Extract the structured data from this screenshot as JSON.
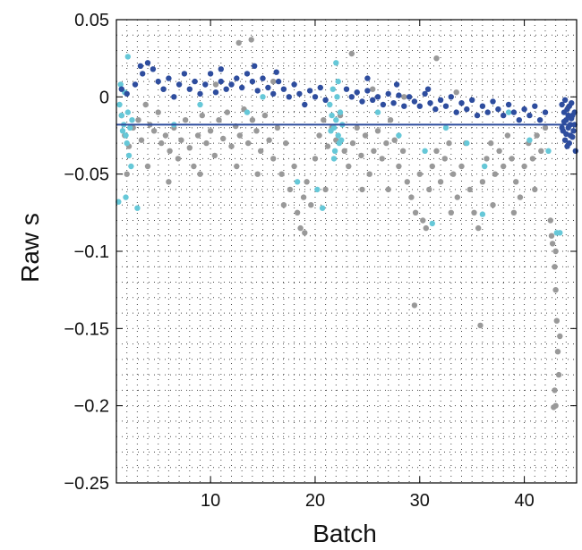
{
  "chart_data": {
    "type": "scatter",
    "title": "",
    "xlabel": "Batch",
    "ylabel": "Raw  s",
    "xlim": [
      1,
      45
    ],
    "ylim": [
      -0.25,
      0.05
    ],
    "xticks": [
      10,
      20,
      30,
      40
    ],
    "yticks": [
      0.05,
      0,
      -0.05,
      -0.1,
      -0.15,
      -0.2,
      -0.25
    ],
    "ytick_labels": [
      "0.05",
      "0",
      "−0.05",
      "−0.1",
      "−0.15",
      "−0.2",
      "−0.25"
    ],
    "grid": "dotted",
    "colors": {
      "gray": "#999999",
      "cyan": "#66c8d8",
      "navy": "#2e4d9e"
    },
    "reference_line": {
      "y": -0.018,
      "x_range": [
        1,
        45
      ],
      "color": "#2e4d9e"
    },
    "series": [
      {
        "color": "#999999",
        "points": [
          [
            1.5,
            -0.012
          ],
          [
            1.8,
            -0.025
          ],
          [
            2.2,
            -0.032
          ],
          [
            2.6,
            -0.02
          ],
          [
            3.1,
            -0.015
          ],
          [
            3.4,
            -0.028
          ],
          [
            3.8,
            -0.005
          ],
          [
            4.2,
            -0.018
          ],
          [
            4.6,
            -0.022
          ],
          [
            5.0,
            -0.01
          ],
          [
            5.3,
            -0.03
          ],
          [
            5.7,
            -0.025
          ],
          [
            6.1,
            -0.035
          ],
          [
            6.5,
            -0.02
          ],
          [
            6.9,
            -0.04
          ],
          [
            7.2,
            -0.028
          ],
          [
            7.6,
            -0.015
          ],
          [
            8.0,
            -0.033
          ],
          [
            8.4,
            -0.045
          ],
          [
            8.8,
            -0.025
          ],
          [
            9.2,
            -0.012
          ],
          [
            9.6,
            -0.03
          ],
          [
            10.0,
            -0.022
          ],
          [
            10.4,
            -0.038
          ],
          [
            10.8,
            -0.015
          ],
          [
            11.2,
            -0.027
          ],
          [
            11.6,
            -0.01
          ],
          [
            12.0,
            -0.032
          ],
          [
            12.4,
            -0.019
          ],
          [
            12.8,
            -0.025
          ],
          [
            13.2,
            -0.008
          ],
          [
            13.6,
            -0.03
          ],
          [
            14.0,
            -0.015
          ],
          [
            14.4,
            -0.022
          ],
          [
            14.8,
            -0.035
          ],
          [
            15.2,
            -0.012
          ],
          [
            15.6,
            -0.028
          ],
          [
            16.0,
            -0.04
          ],
          [
            16.4,
            -0.02
          ],
          [
            16.8,
            -0.05
          ],
          [
            17.2,
            -0.03
          ],
          [
            17.6,
            -0.06
          ],
          [
            18.0,
            -0.045
          ],
          [
            18.3,
            -0.075
          ],
          [
            18.6,
            -0.085
          ],
          [
            18.9,
            -0.065
          ],
          [
            19.2,
            -0.055
          ],
          [
            19.6,
            -0.07
          ],
          [
            20.0,
            -0.04
          ],
          [
            20.4,
            -0.025
          ],
          [
            20.8,
            -0.015
          ],
          [
            21.2,
            -0.032
          ],
          [
            21.6,
            -0.02
          ],
          [
            22.0,
            -0.028
          ],
          [
            22.4,
            -0.012
          ],
          [
            22.8,
            -0.035
          ],
          [
            23.2,
            -0.045
          ],
          [
            23.6,
            -0.03
          ],
          [
            24.0,
            -0.02
          ],
          [
            24.4,
            -0.038
          ],
          [
            24.8,
            -0.025
          ],
          [
            25.2,
            -0.05
          ],
          [
            25.6,
            -0.035
          ],
          [
            26.0,
            -0.022
          ],
          [
            26.4,
            -0.04
          ],
          [
            26.8,
            -0.03
          ],
          [
            27.2,
            -0.015
          ],
          [
            27.6,
            -0.028
          ],
          [
            28.0,
            -0.045
          ],
          [
            28.4,
            -0.035
          ],
          [
            28.8,
            -0.055
          ],
          [
            29.2,
            -0.065
          ],
          [
            29.6,
            -0.075
          ],
          [
            30.0,
            -0.05
          ],
          [
            30.3,
            -0.08
          ],
          [
            30.6,
            -0.085
          ],
          [
            30.9,
            -0.06
          ],
          [
            31.2,
            -0.045
          ],
          [
            31.6,
            -0.035
          ],
          [
            32.0,
            -0.055
          ],
          [
            32.4,
            -0.04
          ],
          [
            32.8,
            -0.03
          ],
          [
            33.2,
            -0.05
          ],
          [
            33.6,
            -0.065
          ],
          [
            34.0,
            -0.045
          ],
          [
            34.4,
            -0.03
          ],
          [
            34.8,
            -0.06
          ],
          [
            35.2,
            -0.075
          ],
          [
            35.6,
            -0.085
          ],
          [
            36.0,
            -0.055
          ],
          [
            36.4,
            -0.04
          ],
          [
            36.8,
            -0.03
          ],
          [
            37.2,
            -0.05
          ],
          [
            37.6,
            -0.035
          ],
          [
            38.0,
            -0.045
          ],
          [
            38.4,
            -0.025
          ],
          [
            38.8,
            -0.04
          ],
          [
            39.2,
            -0.055
          ],
          [
            39.6,
            -0.065
          ],
          [
            40.0,
            -0.045
          ],
          [
            40.4,
            -0.03
          ],
          [
            40.8,
            -0.04
          ],
          [
            41.2,
            -0.025
          ],
          [
            41.6,
            -0.035
          ],
          [
            42.0,
            -0.02
          ],
          [
            42.5,
            -0.08
          ],
          [
            42.7,
            -0.095
          ],
          [
            42.9,
            -0.11
          ],
          [
            43.0,
            -0.125
          ],
          [
            43.1,
            -0.145
          ],
          [
            43.2,
            -0.165
          ],
          [
            43.3,
            -0.18
          ],
          [
            42.9,
            -0.19
          ],
          [
            43.0,
            -0.2
          ],
          [
            42.8,
            -0.201
          ],
          [
            43.4,
            -0.155
          ],
          [
            43.0,
            -0.1
          ],
          [
            42.6,
            -0.09
          ],
          [
            2.0,
            -0.05
          ],
          [
            4.0,
            -0.045
          ],
          [
            6.0,
            -0.055
          ],
          [
            9.0,
            -0.05
          ],
          [
            12.5,
            -0.045
          ],
          [
            14.5,
            -0.05
          ],
          [
            17.0,
            -0.07
          ],
          [
            19.0,
            -0.088
          ],
          [
            21.0,
            -0.06
          ],
          [
            24.5,
            -0.06
          ],
          [
            27.0,
            -0.06
          ],
          [
            29.5,
            -0.135
          ],
          [
            33.0,
            -0.075
          ],
          [
            35.8,
            -0.148
          ],
          [
            37.0,
            -0.07
          ],
          [
            39.0,
            -0.075
          ],
          [
            41.0,
            -0.06
          ],
          [
            12.7,
            0.035
          ],
          [
            13.9,
            0.037
          ],
          [
            23.5,
            0.028
          ],
          [
            31.6,
            0.025
          ],
          [
            16.0,
            0.01
          ],
          [
            5.5,
            0.005
          ],
          [
            10.5,
            0.008
          ],
          [
            25.5,
            0.005
          ],
          [
            28.5,
            0.0
          ],
          [
            33.5,
            0.003
          ]
        ]
      },
      {
        "color": "#66c8d8",
        "points": [
          [
            1.3,
            -0.005
          ],
          [
            1.5,
            -0.012
          ],
          [
            1.7,
            -0.018
          ],
          [
            1.9,
            -0.025
          ],
          [
            2.1,
            -0.01
          ],
          [
            2.3,
            -0.02
          ],
          [
            2.5,
            -0.015
          ],
          [
            1.4,
            0.008
          ],
          [
            1.8,
            0.003
          ],
          [
            2.0,
            -0.03
          ],
          [
            2.2,
            -0.038
          ],
          [
            1.6,
            -0.022
          ],
          [
            1.2,
            -0.068
          ],
          [
            2.1,
            0.026
          ],
          [
            2.4,
            -0.045
          ],
          [
            3.0,
            -0.072
          ],
          [
            1.9,
            -0.065
          ],
          [
            21.4,
            -0.005
          ],
          [
            21.6,
            -0.012
          ],
          [
            21.8,
            -0.02
          ],
          [
            22.0,
            -0.015
          ],
          [
            22.2,
            -0.025
          ],
          [
            22.4,
            -0.01
          ],
          [
            22.6,
            -0.018
          ],
          [
            21.7,
            0.005
          ],
          [
            22.1,
            0.0
          ],
          [
            22.3,
            -0.03
          ],
          [
            21.9,
            -0.035
          ],
          [
            22.5,
            -0.028
          ],
          [
            21.5,
            -0.022
          ],
          [
            22.0,
            0.022
          ],
          [
            22.2,
            0.01
          ],
          [
            21.8,
            -0.04
          ],
          [
            20.2,
            -0.06
          ],
          [
            20.7,
            -0.072
          ],
          [
            18.3,
            -0.055
          ],
          [
            9.0,
            -0.005
          ],
          [
            13.5,
            -0.01
          ],
          [
            15.0,
            0.0
          ],
          [
            26.0,
            -0.01
          ],
          [
            28.0,
            -0.025
          ],
          [
            30.5,
            -0.035
          ],
          [
            32.5,
            -0.02
          ],
          [
            34.5,
            -0.03
          ],
          [
            36.2,
            -0.045
          ],
          [
            38.5,
            -0.01
          ],
          [
            40.5,
            -0.028
          ],
          [
            42.3,
            -0.035
          ],
          [
            43.1,
            -0.088
          ],
          [
            43.4,
            -0.088
          ],
          [
            31.2,
            -0.082
          ],
          [
            36.0,
            -0.076
          ],
          [
            6.5,
            -0.018
          ]
        ]
      },
      {
        "color": "#2e4d9e",
        "points": [
          [
            1.5,
            0.005
          ],
          [
            2.0,
            0.002
          ],
          [
            2.8,
            0.008
          ],
          [
            3.5,
            0.015
          ],
          [
            4.0,
            0.022
          ],
          [
            4.5,
            0.018
          ],
          [
            5.0,
            0.01
          ],
          [
            5.5,
            0.005
          ],
          [
            6.0,
            0.012
          ],
          [
            6.5,
            0.0
          ],
          [
            7.0,
            0.008
          ],
          [
            7.5,
            0.015
          ],
          [
            8.0,
            0.005
          ],
          [
            8.5,
            0.01
          ],
          [
            9.0,
            0.002
          ],
          [
            9.5,
            0.008
          ],
          [
            10.0,
            0.015
          ],
          [
            10.5,
            0.003
          ],
          [
            11.0,
            0.01
          ],
          [
            11.5,
            0.005
          ],
          [
            12.0,
            0.008
          ],
          [
            12.5,
            0.012
          ],
          [
            13.0,
            0.006
          ],
          [
            13.5,
            0.015
          ],
          [
            14.0,
            0.01
          ],
          [
            14.5,
            0.004
          ],
          [
            15.0,
            0.012
          ],
          [
            15.5,
            0.006
          ],
          [
            16.0,
            0.002
          ],
          [
            16.5,
            0.01
          ],
          [
            17.0,
            0.005
          ],
          [
            17.5,
            0.0
          ],
          [
            18.0,
            0.008
          ],
          [
            18.5,
            0.002
          ],
          [
            19.0,
            -0.005
          ],
          [
            19.5,
            0.004
          ],
          [
            20.0,
            0.0
          ],
          [
            20.5,
            0.006
          ],
          [
            21.0,
            -0.002
          ],
          [
            23.0,
            0.005
          ],
          [
            23.5,
            0.0
          ],
          [
            24.0,
            0.003
          ],
          [
            24.5,
            -0.003
          ],
          [
            25.0,
            0.004
          ],
          [
            25.5,
            -0.002
          ],
          [
            26.0,
            0.0
          ],
          [
            26.5,
            -0.005
          ],
          [
            27.0,
            0.002
          ],
          [
            27.5,
            -0.004
          ],
          [
            28.0,
            0.001
          ],
          [
            28.5,
            -0.006
          ],
          [
            29.0,
            0.0
          ],
          [
            29.5,
            -0.003
          ],
          [
            30.0,
            -0.006
          ],
          [
            30.5,
            0.002
          ],
          [
            31.0,
            -0.004
          ],
          [
            31.5,
            -0.008
          ],
          [
            32.0,
            -0.002
          ],
          [
            32.5,
            -0.006
          ],
          [
            33.0,
            0.0
          ],
          [
            33.5,
            -0.01
          ],
          [
            34.0,
            -0.004
          ],
          [
            34.5,
            -0.008
          ],
          [
            35.0,
            -0.002
          ],
          [
            35.5,
            -0.012
          ],
          [
            36.0,
            -0.006
          ],
          [
            36.5,
            -0.01
          ],
          [
            37.0,
            -0.003
          ],
          [
            37.5,
            -0.008
          ],
          [
            38.0,
            -0.012
          ],
          [
            38.5,
            -0.005
          ],
          [
            39.0,
            -0.01
          ],
          [
            39.5,
            -0.015
          ],
          [
            40.0,
            -0.008
          ],
          [
            40.5,
            -0.012
          ],
          [
            41.0,
            -0.006
          ],
          [
            41.5,
            -0.015
          ],
          [
            42.0,
            -0.01
          ],
          [
            3.3,
            0.02
          ],
          [
            11.0,
            0.018
          ],
          [
            14.2,
            0.02
          ],
          [
            16.3,
            0.016
          ],
          [
            25.0,
            0.012
          ],
          [
            27.8,
            0.008
          ],
          [
            30.8,
            0.005
          ],
          [
            43.6,
            -0.005
          ],
          [
            43.8,
            -0.01
          ],
          [
            44.0,
            -0.015
          ],
          [
            44.2,
            -0.02
          ],
          [
            44.4,
            -0.025
          ],
          [
            44.6,
            -0.012
          ],
          [
            44.8,
            -0.018
          ],
          [
            43.7,
            -0.022
          ],
          [
            43.9,
            -0.028
          ],
          [
            44.1,
            -0.008
          ],
          [
            44.3,
            -0.03
          ],
          [
            44.5,
            -0.004
          ],
          [
            44.7,
            -0.022
          ],
          [
            43.8,
            -0.016
          ],
          [
            44.0,
            -0.024
          ],
          [
            44.2,
            -0.012
          ],
          [
            44.4,
            -0.018
          ],
          [
            44.6,
            -0.026
          ],
          [
            44.8,
            -0.01
          ],
          [
            43.6,
            -0.02
          ],
          [
            44.9,
            -0.035
          ],
          [
            44.1,
            -0.032
          ],
          [
            43.9,
            -0.002
          ],
          [
            44.5,
            -0.014
          ],
          [
            44.3,
            -0.006
          ]
        ]
      }
    ]
  }
}
